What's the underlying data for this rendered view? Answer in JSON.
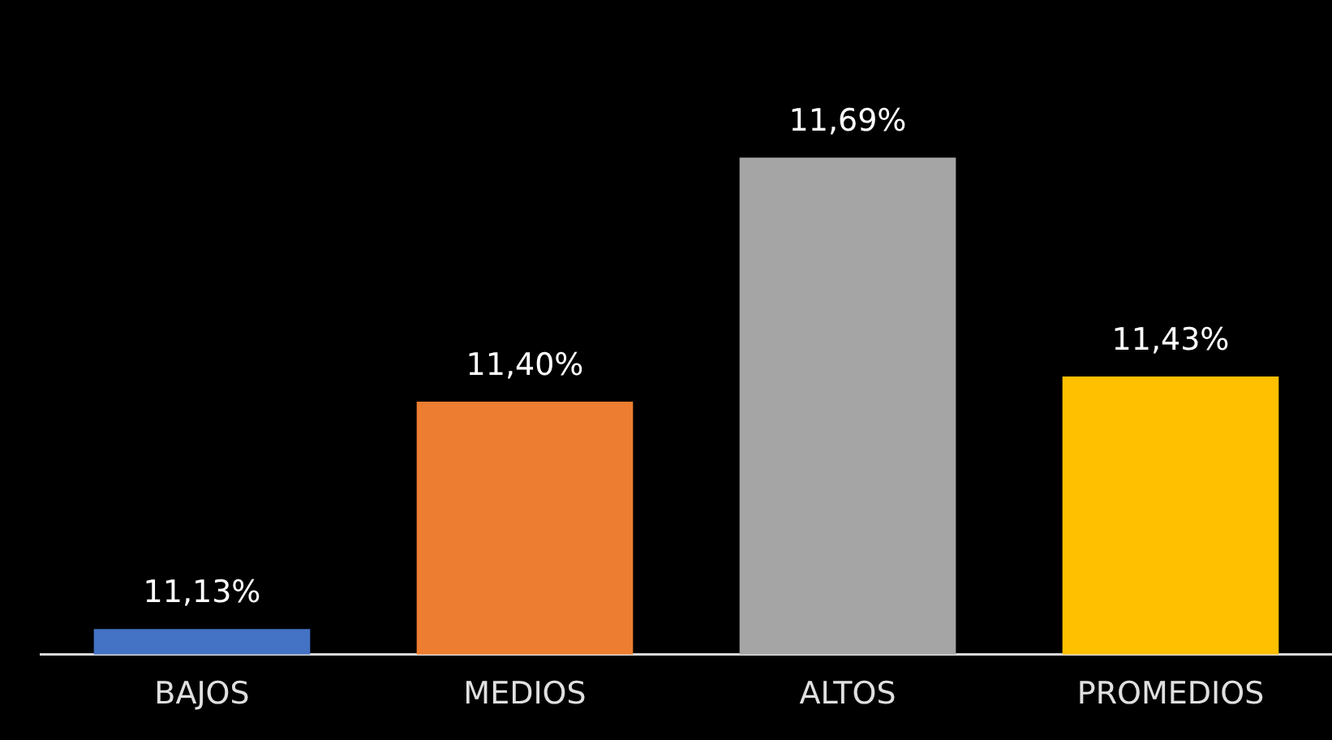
{
  "chart_data": {
    "type": "bar",
    "categories": [
      "BAJOS",
      "MEDIOS",
      "ALTOS",
      "PROMEDIOS"
    ],
    "values": [
      11.13,
      11.4,
      11.69,
      11.43
    ],
    "colors": [
      "#4472c4",
      "#ed7d31",
      "#a5a5a5",
      "#ffc000"
    ],
    "value_labels": [
      "11,13%",
      "11,40%",
      "11,69%",
      "11,43%"
    ],
    "tick_labels": "x"
  }
}
